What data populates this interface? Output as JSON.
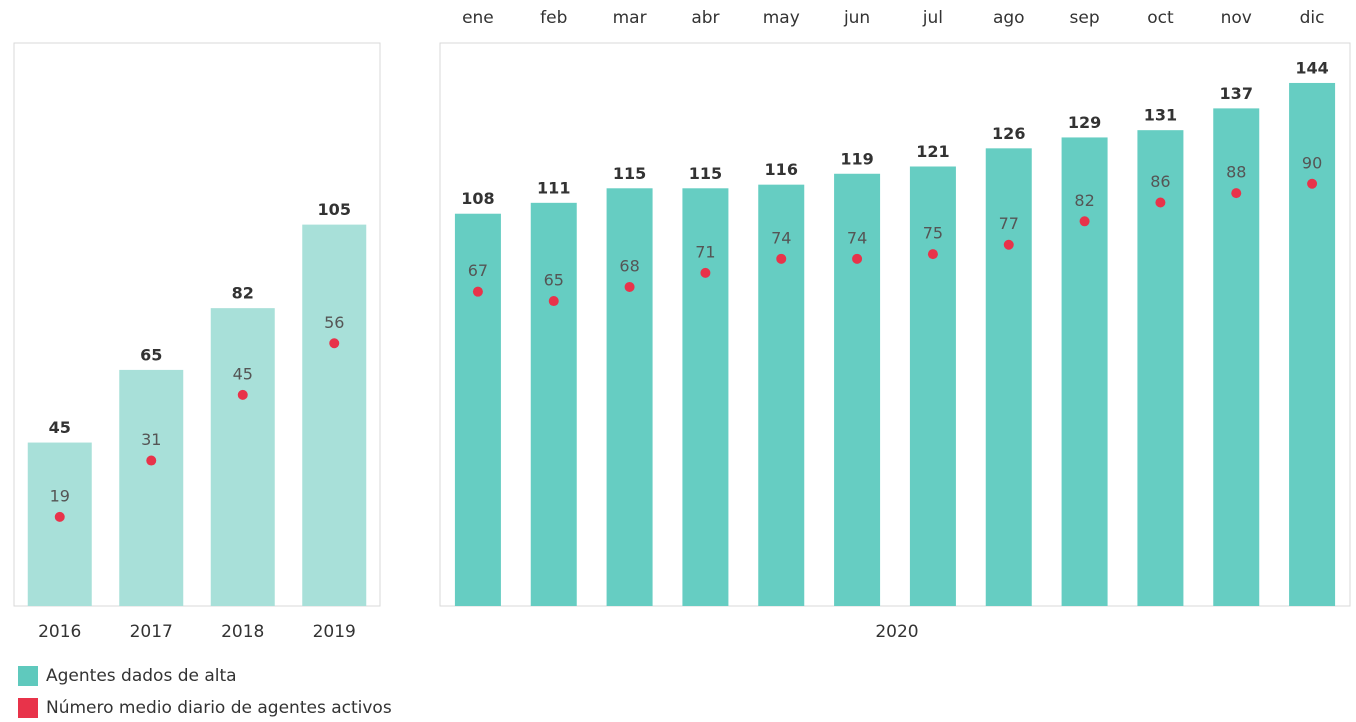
{
  "chart_data": [
    {
      "type": "bar",
      "categories": [
        "2016",
        "2017",
        "2018",
        "2019"
      ],
      "series": [
        {
          "name": "Agentes dados de alta",
          "color": "#a8e0d9",
          "legend_color": "#5fc9bd",
          "values": [
            45,
            65,
            82,
            105
          ]
        },
        {
          "name": "Número medio diario de agentes activos",
          "color": "#e8334a",
          "axis": "y2",
          "values": [
            19,
            31,
            45,
            56
          ]
        }
      ],
      "ylim": [
        0,
        155
      ],
      "y2lim": [
        0,
        120
      ]
    },
    {
      "type": "bar",
      "x_label": "2020",
      "categories": [
        "ene",
        "feb",
        "mar",
        "abr",
        "may",
        "jun",
        "jul",
        "ago",
        "sep",
        "oct",
        "nov",
        "dic"
      ],
      "series": [
        {
          "color": "#66cdc2",
          "values": [
            108,
            111,
            115,
            115,
            116,
            119,
            121,
            126,
            129,
            131,
            137,
            144
          ]
        },
        {
          "color": "#e8334a",
          "axis": "y2",
          "values": [
            67,
            65,
            68,
            71,
            74,
            74,
            75,
            77,
            82,
            86,
            88,
            90
          ]
        }
      ],
      "ylim": [
        0,
        155
      ],
      "y2lim": [
        0,
        120
      ]
    }
  ]
}
